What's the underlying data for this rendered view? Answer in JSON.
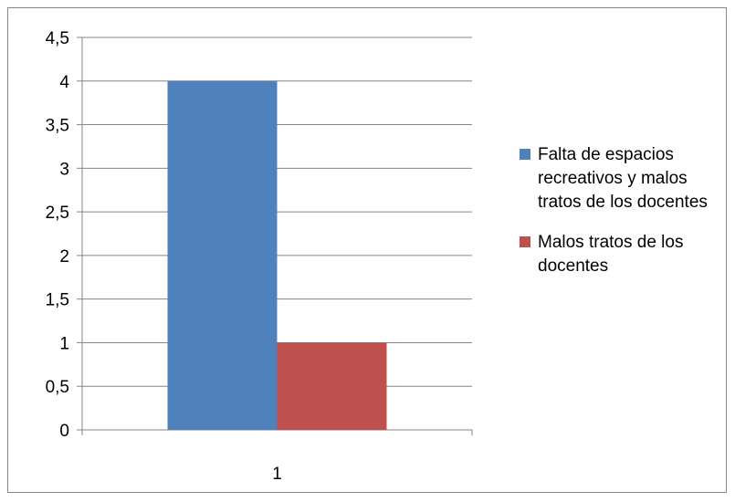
{
  "chart_data": {
    "type": "bar",
    "categories": [
      "1"
    ],
    "series": [
      {
        "name": "Falta de espacios recreativos y malos tratos de los docentes",
        "values": [
          4
        ],
        "color": "#4F81BD"
      },
      {
        "name": "Malos tratos de los docentes",
        "values": [
          1
        ],
        "color": "#C0504D"
      }
    ],
    "y_ticks": [
      "0",
      "0,5",
      "1",
      "1,5",
      "2",
      "2,5",
      "3",
      "3,5",
      "4",
      "4,5"
    ],
    "ylim": [
      0,
      4.5
    ],
    "grid": true,
    "legend_position": "right",
    "title": "",
    "xlabel": "",
    "ylabel": ""
  }
}
